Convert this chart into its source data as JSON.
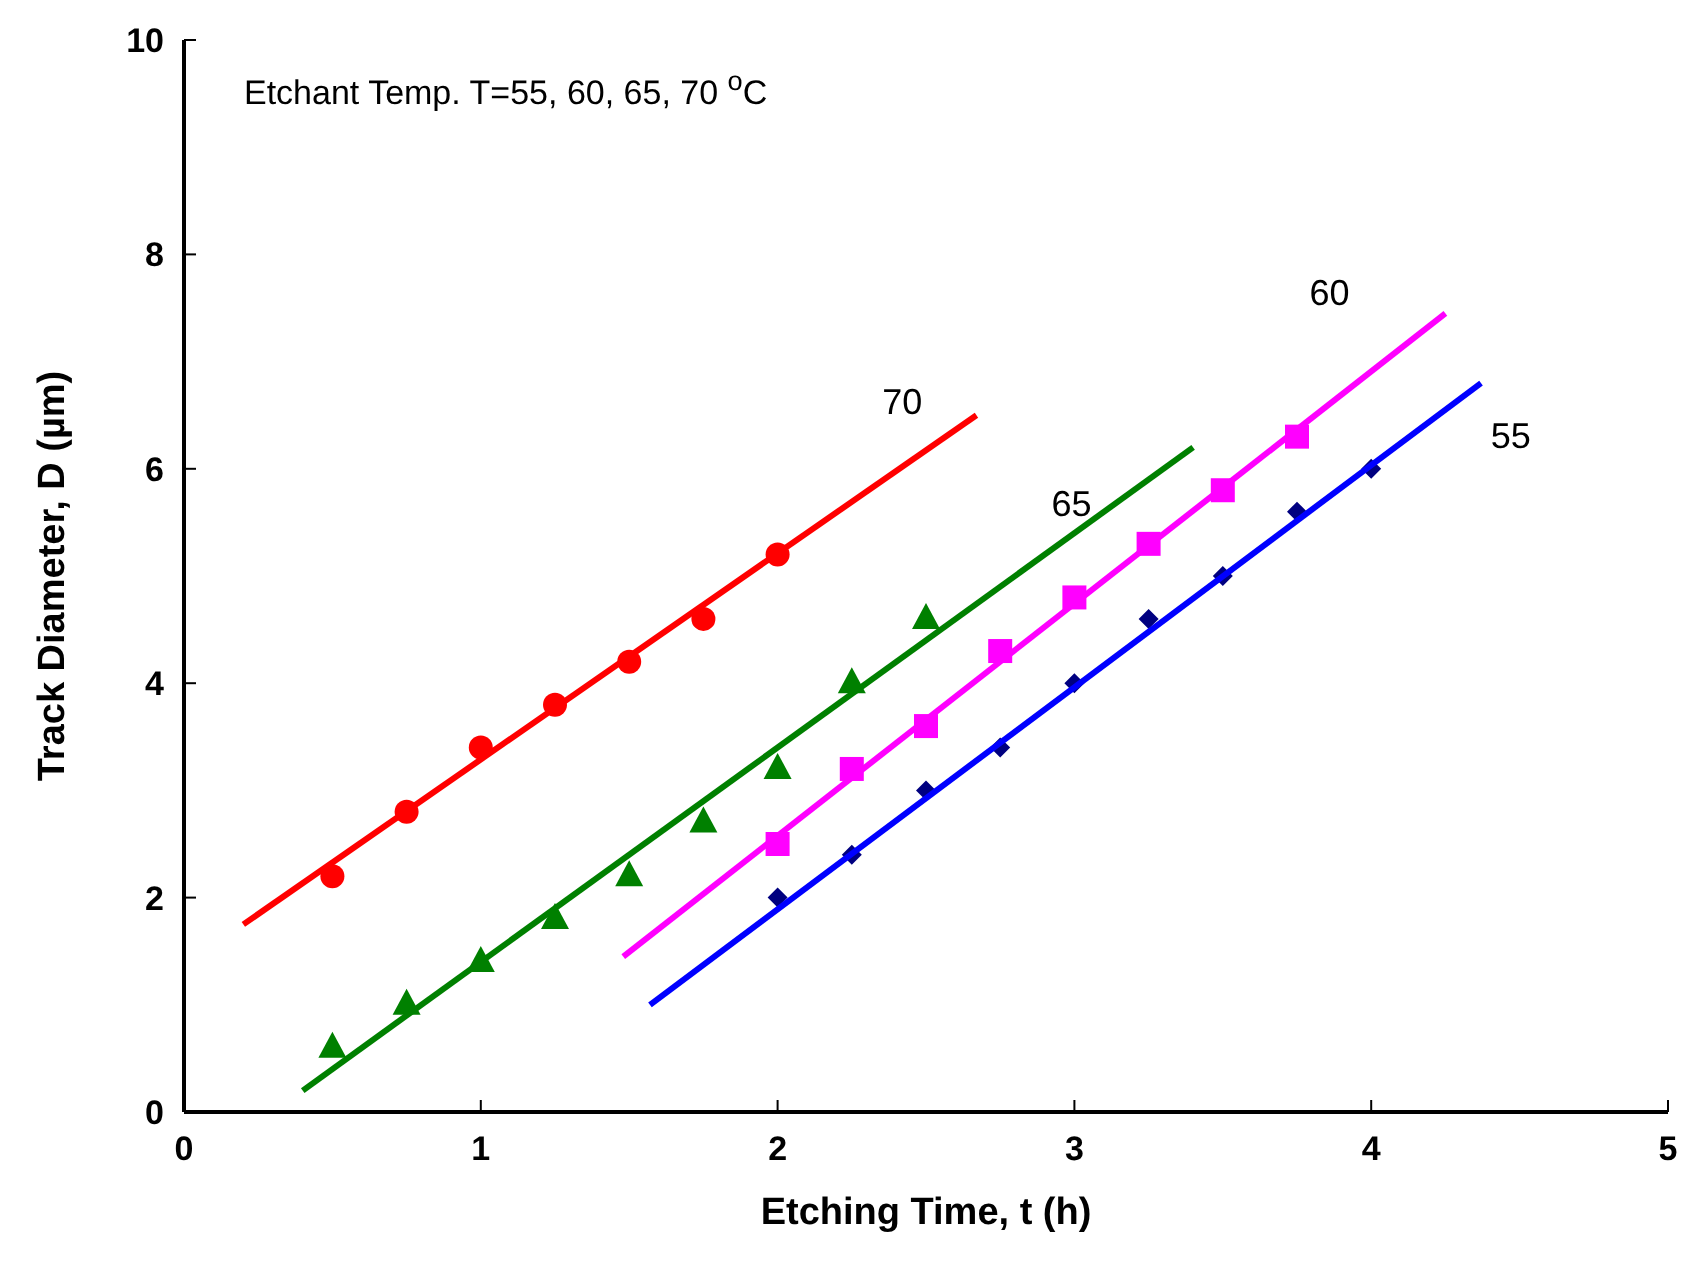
{
  "chart_data": {
    "type": "scatter",
    "xlabel": "Etching Time, t (h)",
    "ylabel": "Track Diameter, D (µm)",
    "annotations": [
      "Etchant Temp. T=55, 60, 65, 70 $^{o}$C"
    ],
    "xlim": [
      0,
      5
    ],
    "ylim": [
      0,
      10
    ],
    "xticks": [
      0,
      1,
      2,
      3,
      4,
      5
    ],
    "yticks": [
      0,
      2,
      4,
      6,
      8,
      10
    ],
    "grid": false,
    "series": [
      {
        "marker": "circle",
        "color": "#ff0000",
        "x": [
          0.5,
          0.75,
          1,
          1.25,
          1.5,
          1.75,
          2
        ],
        "values": [
          2.2,
          2.8,
          3.4,
          3.8,
          4.2,
          4.6,
          5.2
        ]
      },
      {
        "marker": "triangle",
        "color": "#008000",
        "x": [
          0.5,
          0.75,
          1,
          1.25,
          1.5,
          1.75,
          2,
          2.25,
          2.5
        ],
        "values": [
          0.6,
          1.0,
          1.4,
          1.8,
          2.2,
          2.7,
          3.2,
          4.0,
          4.6
        ]
      },
      {
        "marker": "square",
        "color": "#ff00ff",
        "x": [
          2,
          2.25,
          2.5,
          2.75,
          3,
          3.25,
          3.5,
          3.75
        ],
        "values": [
          2.5,
          3.2,
          3.6,
          4.3,
          4.8,
          5.3,
          5.8,
          6.3
        ]
      },
      {
        "marker": "diamond",
        "color": "#000080",
        "x": [
          2,
          2.25,
          2.5,
          2.75,
          3,
          3.25,
          3.5,
          3.75,
          4
        ],
        "values": [
          2.0,
          2.4,
          3.0,
          3.4,
          4.0,
          4.6,
          5.0,
          5.6,
          6.0
        ]
      },
      {
        "type": "line",
        "name": "70",
        "color": "#ff0000",
        "x": [
          0.2,
          2.67
        ],
        "values": [
          1.75,
          6.5
        ]
      },
      {
        "type": "line",
        "name": "65",
        "color": "#008000",
        "x": [
          0.4,
          3.4
        ],
        "values": [
          0.2,
          6.2
        ]
      },
      {
        "type": "line",
        "name": "60",
        "color": "#ff00ff",
        "x": [
          1.48,
          4.25
        ],
        "values": [
          1.45,
          7.45
        ]
      },
      {
        "type": "line",
        "name": "55",
        "color": "#0000ff",
        "x": [
          1.57,
          4.37
        ],
        "values": [
          1.0,
          6.8
        ]
      }
    ]
  }
}
